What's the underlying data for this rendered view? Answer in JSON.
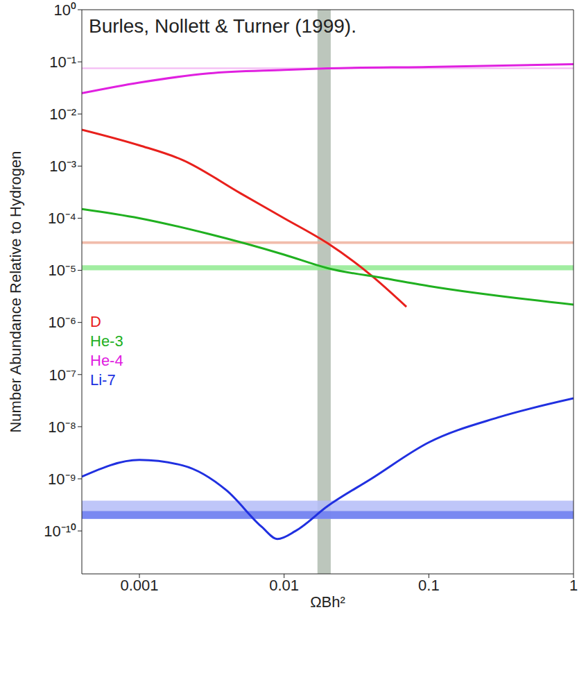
{
  "chart_data": {
    "type": "line",
    "log": true,
    "legend": "left",
    "annotation": "Burles, Nollett & Turner (1999).",
    "x_label": "ΩBh²",
    "y_label": "Number Abundance Relative to Hydrogen",
    "xlim": [
      0.0004,
      1
    ],
    "xticks": [
      0.001,
      0.01,
      0.1,
      1
    ],
    "ylim": [
      1.5e-11,
      1
    ],
    "yticks": [
      {
        "value": 1,
        "label": "10⁰"
      },
      {
        "value": 0.1,
        "label": "10⁻¹"
      },
      {
        "value": 0.01,
        "label": "10⁻²"
      },
      {
        "value": 0.001,
        "label": "10⁻³"
      },
      {
        "value": 0.0001,
        "label": "10⁻⁴"
      },
      {
        "value": 1e-05,
        "label": "10⁻⁵"
      },
      {
        "value": 1e-06,
        "label": "10⁻⁶"
      },
      {
        "value": 1e-07,
        "label": "10⁻⁷"
      },
      {
        "value": 1e-08,
        "label": "10⁻⁸"
      },
      {
        "value": 1e-09,
        "label": "10⁻⁹"
      },
      {
        "value": 1e-10,
        "label": "10⁻¹⁰"
      }
    ],
    "x_band": {
      "range": [
        0.017,
        0.021
      ],
      "color": "#bcc6bc"
    },
    "series": [
      {
        "name": "He-4",
        "color": "#e020e0",
        "x": [
          0.0004,
          0.001,
          0.003,
          0.01,
          0.02,
          0.1,
          1
        ],
        "values": [
          0.025,
          0.04,
          0.06,
          0.07,
          0.075,
          0.08,
          0.09
        ],
        "observed": [
          {
            "range": [
              0.073,
              0.078
            ],
            "color": "#f2b0f2"
          }
        ]
      },
      {
        "name": "D",
        "color": "#e8201c",
        "x": [
          0.0004,
          0.001,
          0.002,
          0.005,
          0.01,
          0.02,
          0.04,
          0.07
        ],
        "values": [
          0.005,
          0.0025,
          0.0013,
          0.0003,
          0.0001,
          3.3e-05,
          8e-06,
          2e-06
        ],
        "observed": [
          {
            "range": [
              3.2e-05,
              3.6e-05
            ],
            "color": "#eeb09c"
          }
        ]
      },
      {
        "name": "He-3",
        "color": "#20b020",
        "x": [
          0.0004,
          0.001,
          0.003,
          0.01,
          0.02,
          0.05,
          0.1,
          1
        ],
        "values": [
          0.00015,
          0.0001,
          5e-05,
          2e-05,
          1.1e-05,
          7e-06,
          5e-06,
          2.2e-06
        ],
        "observed": [
          {
            "range": [
              1e-05,
              1.25e-05
            ],
            "color": "#90ea90"
          }
        ]
      },
      {
        "name": "Li-7",
        "color": "#2030e0",
        "x": [
          0.0004,
          0.001,
          0.002,
          0.004,
          0.007,
          0.009,
          0.012,
          0.02,
          0.04,
          0.1,
          0.3,
          1
        ],
        "values": [
          1.1e-09,
          2.3e-09,
          1.8e-09,
          6e-10,
          1.2e-10,
          7e-11,
          1e-10,
          3e-10,
          1e-09,
          5e-09,
          1.5e-08,
          3.5e-08
        ],
        "observed": [
          {
            "range": [
              1.7e-10,
              3.8e-10
            ],
            "color": "#b4bcf8"
          },
          {
            "range": [
              1.7e-10,
              2.4e-10
            ],
            "color": "#6c7cf0"
          }
        ]
      }
    ]
  }
}
